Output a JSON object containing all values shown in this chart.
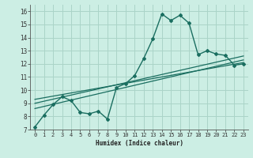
{
  "title": "",
  "xlabel": "Humidex (Indice chaleur)",
  "bg_color": "#cceee4",
  "grid_color": "#aad4c8",
  "line_color": "#1a6e60",
  "xlim": [
    -0.5,
    23.5
  ],
  "ylim": [
    7,
    16.5
  ],
  "xticks": [
    0,
    1,
    2,
    3,
    4,
    5,
    6,
    7,
    8,
    9,
    10,
    11,
    12,
    13,
    14,
    15,
    16,
    17,
    18,
    19,
    20,
    21,
    22,
    23
  ],
  "yticks": [
    7,
    8,
    9,
    10,
    11,
    12,
    13,
    14,
    15,
    16
  ],
  "main_x": [
    0,
    1,
    2,
    3,
    4,
    5,
    6,
    7,
    8,
    9,
    10,
    11,
    12,
    13,
    14,
    15,
    16,
    17,
    18,
    19,
    20,
    21,
    22,
    23
  ],
  "main_y": [
    7.2,
    8.1,
    8.9,
    9.5,
    9.2,
    8.3,
    8.2,
    8.4,
    7.8,
    10.2,
    10.5,
    11.1,
    12.4,
    13.9,
    15.8,
    15.3,
    15.7,
    15.1,
    12.7,
    13.0,
    12.75,
    12.65,
    11.9,
    12.0
  ],
  "trend1_x": [
    0,
    23
  ],
  "trend1_y": [
    8.6,
    12.3
  ],
  "trend2_x": [
    0,
    23
  ],
  "trend2_y": [
    9.0,
    12.6
  ],
  "trend3_x": [
    0,
    23
  ],
  "trend3_y": [
    9.3,
    12.1
  ]
}
